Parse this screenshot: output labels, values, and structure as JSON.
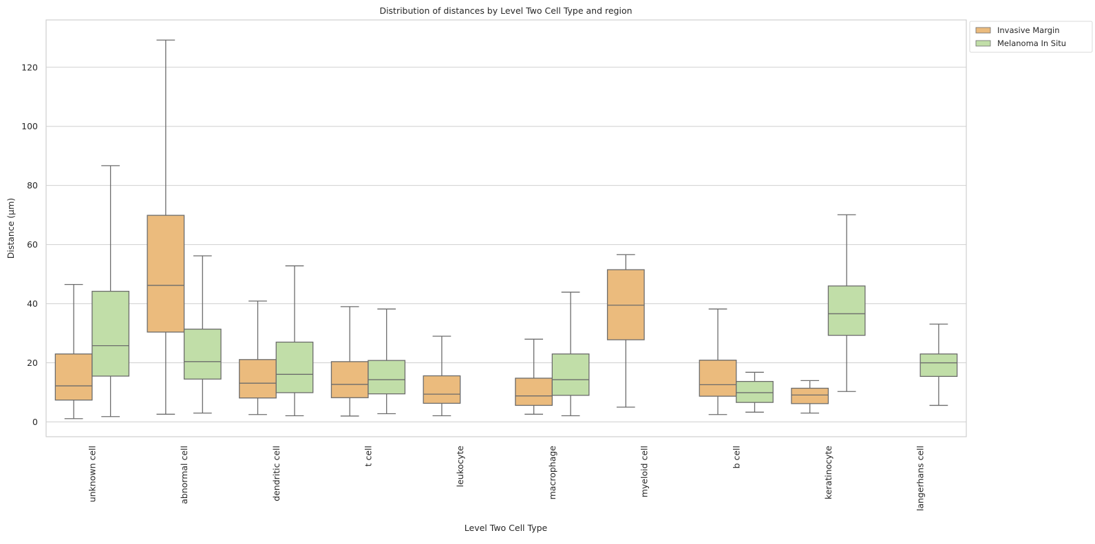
{
  "chart_data": {
    "type": "boxplot",
    "title": "Distribution of distances by Level Two Cell Type and region",
    "xlabel": "Level Two Cell Type",
    "ylabel": "Distance (µm)",
    "ylim": [
      -5,
      136
    ],
    "yticks": [
      0,
      20,
      40,
      60,
      80,
      100,
      120
    ],
    "grid": "horizontal",
    "legend_position": "outside-top-right",
    "categories": [
      "unknown cell",
      "abnormal cell",
      "dendritic cell",
      "t cell",
      "leukocyte",
      "macrophage",
      "myeloid cell",
      "b cell",
      "keratinocyte",
      "langerhans cell"
    ],
    "series": [
      {
        "name": "Invasive Margin",
        "color": "#ebbb7d",
        "boxes": [
          {
            "whislo": 1.1,
            "q1": 7.4,
            "med": 12.2,
            "q3": 23.0,
            "whishi": 46.5
          },
          {
            "whislo": 2.6,
            "q1": 30.4,
            "med": 46.2,
            "q3": 69.9,
            "whishi": 129.2
          },
          {
            "whislo": 2.5,
            "q1": 8.1,
            "med": 13.1,
            "q3": 21.1,
            "whishi": 40.9
          },
          {
            "whislo": 2.0,
            "q1": 8.2,
            "med": 12.7,
            "q3": 20.4,
            "whishi": 39.0
          },
          {
            "whislo": 2.1,
            "q1": 6.3,
            "med": 9.4,
            "q3": 15.6,
            "whishi": 29.0
          },
          {
            "whislo": 2.6,
            "q1": 5.6,
            "med": 8.8,
            "q3": 14.8,
            "whishi": 28.0
          },
          {
            "whislo": 5.0,
            "q1": 27.8,
            "med": 39.5,
            "q3": 51.5,
            "whishi": 56.6
          },
          {
            "whislo": 2.5,
            "q1": 8.7,
            "med": 12.6,
            "q3": 20.9,
            "whishi": 38.2
          },
          {
            "whislo": 3.0,
            "q1": 6.2,
            "med": 9.1,
            "q3": 11.4,
            "whishi": 14.0
          },
          null
        ]
      },
      {
        "name": "Melanoma In Situ",
        "color": "#c1dea8",
        "boxes": [
          {
            "whislo": 1.8,
            "q1": 15.5,
            "med": 25.8,
            "q3": 44.2,
            "whishi": 86.7
          },
          {
            "whislo": 3.0,
            "q1": 14.5,
            "med": 20.4,
            "q3": 31.4,
            "whishi": 56.2
          },
          {
            "whislo": 2.1,
            "q1": 9.9,
            "med": 16.1,
            "q3": 27.0,
            "whishi": 52.8
          },
          {
            "whislo": 2.8,
            "q1": 9.5,
            "med": 14.3,
            "q3": 20.8,
            "whishi": 38.2
          },
          null,
          {
            "whislo": 2.1,
            "q1": 9.0,
            "med": 14.3,
            "q3": 23.0,
            "whishi": 43.9
          },
          null,
          {
            "whislo": 3.3,
            "q1": 6.6,
            "med": 9.9,
            "q3": 13.7,
            "whishi": 16.8
          },
          {
            "whislo": 10.3,
            "q1": 29.3,
            "med": 36.6,
            "q3": 46.0,
            "whishi": 70.1
          },
          {
            "whislo": 5.6,
            "q1": 15.4,
            "med": 20.0,
            "q3": 23.0,
            "whishi": 33.1
          }
        ]
      }
    ],
    "styles": {
      "line_color": "#6b6b6b",
      "grid_color": "#cfcfcf",
      "frame_color": "#cfcfcf"
    }
  }
}
